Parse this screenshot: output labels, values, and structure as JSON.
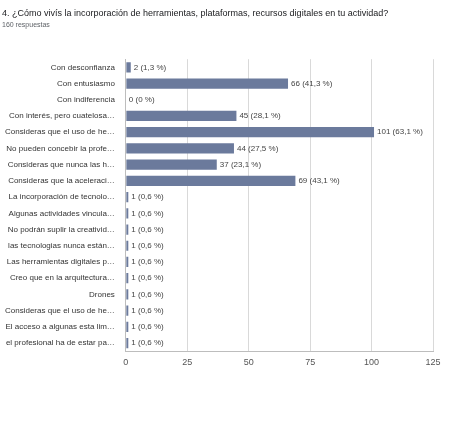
{
  "chart_data": {
    "type": "bar",
    "orientation": "horizontal",
    "title": "4. ¿Cómo vivís la incorporación de herramientas, plataformas, recursos digitales en tu actividad?",
    "subtitle": "160 respuestas",
    "categories": [
      "Con desconfianza",
      "Con entusiasmo",
      "Con indiferencia",
      "Con interés, pero cuatelosa…",
      "Consideras que el uso de he…",
      "No pueden concebir la profe…",
      "Consideras que nunca las h…",
      "Consideras que la aceleraci…",
      "La incorporación de tecnolo…",
      "Algunas actividades vincula…",
      "No podrán suplir la creativid…",
      "las tecnologias nunca están…",
      "Las herramientas digitales p…",
      "Creo que en la arquitectura…",
      "Drones",
      "Consideras que el uso de he…",
      "El acceso a algunas esta lim…",
      "el profesional ha de estar pa…"
    ],
    "values": [
      2,
      66,
      0,
      45,
      101,
      44,
      37,
      69,
      1,
      1,
      1,
      1,
      1,
      1,
      1,
      1,
      1,
      1
    ],
    "value_labels": [
      "2 (1,3 %)",
      "66 (41,3 %)",
      "0 (0 %)",
      "45 (28,1 %)",
      "101 (63,1 %)",
      "44 (27,5 %)",
      "37 (23,1 %)",
      "69 (43,1 %)",
      "1 (0,6 %)",
      "1 (0,6 %)",
      "1 (0,6 %)",
      "1 (0,6 %)",
      "1 (0,6 %)",
      "1 (0,6 %)",
      "1 (0,6 %)",
      "1 (0,6 %)",
      "1 (0,6 %)",
      "1 (0,6 %)"
    ],
    "data_labels": true,
    "color": "#6b7a9c",
    "xlim": [
      0,
      125
    ],
    "xticks": [
      0,
      25,
      50,
      75,
      100,
      125
    ],
    "grid": true
  }
}
